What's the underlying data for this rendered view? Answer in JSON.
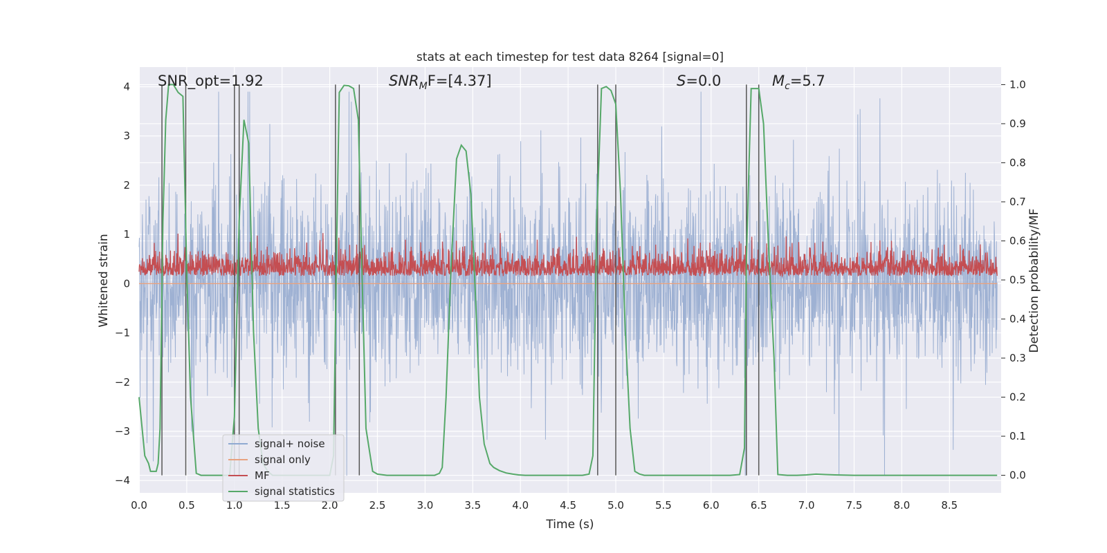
{
  "chart_data": {
    "type": "line",
    "title": "stats at each timestep for test data 8264 [signal=0]",
    "xlabel": "Time (s)",
    "ylabel": "Whitened strain",
    "ylabel_right": "Detection probability/MF",
    "xlim": [
      0,
      9.0
    ],
    "ylim": [
      -4.25,
      4.4
    ],
    "ylim_right": [
      -0.045,
      1.045
    ],
    "x_ticks": [
      "0.0",
      "0.5",
      "1.0",
      "1.5",
      "2.0",
      "2.5",
      "3.0",
      "3.5",
      "4.0",
      "4.5",
      "5.0",
      "5.5",
      "6.0",
      "6.5",
      "7.0",
      "7.5",
      "8.0",
      "8.5"
    ],
    "y_ticks": [
      "−4",
      "−3",
      "−2",
      "−1",
      "0",
      "1",
      "2",
      "3",
      "4"
    ],
    "y_ticks_right": [
      "0.0",
      "0.1",
      "0.2",
      "0.3",
      "0.4",
      "0.5",
      "0.6",
      "0.7",
      "0.8",
      "0.9",
      "1.0"
    ],
    "annotations": {
      "snr_opt": "SNR_opt=1.92",
      "snr_mf_main": "SNR",
      "snr_mf_sub": "M",
      "snr_mf_rest": "F=[4.37]",
      "s_main": "S",
      "s_rest": "=0.0",
      "mc_main": "M",
      "mc_sub": "c",
      "mc_rest": "=5.7"
    },
    "legend": {
      "position": "lower-left",
      "entries": [
        {
          "label": "signal+ noise",
          "color": "#8faad1"
        },
        {
          "label": "signal only",
          "color": "#e8a27f"
        },
        {
          "label": "MF",
          "color": "#c44e52"
        },
        {
          "label": "signal statistics",
          "color": "#55a868"
        }
      ]
    },
    "series": [
      {
        "name": "signal+ noise",
        "color": "#9aaed1",
        "description": "whitened noise, approx Gaussian, envelope about ±2.4, spikes to ±3.9",
        "range": [
          -3.9,
          3.9
        ]
      },
      {
        "name": "signal only",
        "color": "#e8a27f",
        "values_constant": 0.0
      },
      {
        "name": "MF",
        "color": "#c44e52",
        "description": "matched filter output on right axis",
        "range": [
          0.49,
          0.62
        ]
      },
      {
        "name": "signal statistics",
        "color": "#55a868",
        "x": [
          0.0,
          0.06,
          0.1,
          0.12,
          0.18,
          0.2,
          0.22,
          0.25,
          0.28,
          0.31,
          0.36,
          0.41,
          0.46,
          0.5,
          0.54,
          0.6,
          0.65,
          0.7,
          0.75,
          0.8,
          0.85,
          0.9,
          0.95,
          1.0,
          1.05,
          1.1,
          1.15,
          1.2,
          1.25,
          1.3,
          1.35,
          1.4,
          1.45,
          1.5,
          1.55,
          1.6,
          1.65,
          1.7,
          1.75,
          1.8,
          1.85,
          1.9,
          1.95,
          2.0,
          2.04,
          2.07,
          2.1,
          2.15,
          2.2,
          2.25,
          2.3,
          2.33,
          2.38,
          2.45,
          2.5,
          2.6,
          2.7,
          2.8,
          2.9,
          3.0,
          3.1,
          3.15,
          3.18,
          3.22,
          3.27,
          3.33,
          3.38,
          3.43,
          3.48,
          3.53,
          3.57,
          3.62,
          3.68,
          3.72,
          3.78,
          3.85,
          3.92,
          3.98,
          4.05,
          4.15,
          4.3,
          4.5,
          4.65,
          4.72,
          4.76,
          4.8,
          4.85,
          4.9,
          4.95,
          5.0,
          5.05,
          5.1,
          5.15,
          5.2,
          5.25,
          5.3,
          5.4,
          5.6,
          5.8,
          6.0,
          6.2,
          6.3,
          6.35,
          6.37,
          6.42,
          6.46,
          6.5,
          6.55,
          6.6,
          6.66,
          6.7,
          6.8,
          6.9,
          7.0,
          7.1,
          7.2,
          7.3,
          7.5,
          8.0,
          8.5,
          9.0
        ],
        "values": [
          0.2,
          0.05,
          0.03,
          0.01,
          0.01,
          0.03,
          0.12,
          0.65,
          0.91,
          1.0,
          1.0,
          0.98,
          0.97,
          0.52,
          0.2,
          0.005,
          0.0,
          0.0,
          0.0,
          0.0,
          0.0,
          0.0,
          0.0,
          0.15,
          0.65,
          0.91,
          0.85,
          0.37,
          0.12,
          0.03,
          0.01,
          0.0,
          0.0,
          0.0,
          0.0,
          0.0,
          0.0,
          0.0,
          0.0,
          0.0,
          0.0,
          0.0,
          0.0,
          0.0,
          0.05,
          0.56,
          0.98,
          0.998,
          0.997,
          0.99,
          0.91,
          0.6,
          0.12,
          0.01,
          0.003,
          0.0,
          0.0,
          0.0,
          0.0,
          0.0,
          0.0,
          0.005,
          0.02,
          0.2,
          0.52,
          0.81,
          0.845,
          0.83,
          0.72,
          0.45,
          0.2,
          0.08,
          0.03,
          0.02,
          0.012,
          0.006,
          0.003,
          0.001,
          0.0,
          0.0,
          0.0,
          0.0,
          0.0,
          0.003,
          0.05,
          0.65,
          0.99,
          0.995,
          0.985,
          0.95,
          0.72,
          0.37,
          0.12,
          0.01,
          0.003,
          0.0,
          0.0,
          0.0,
          0.0,
          0.0,
          0.0,
          0.002,
          0.07,
          0.55,
          0.99,
          0.99,
          0.99,
          0.9,
          0.6,
          0.3,
          0.002,
          0.0,
          0.0,
          0.001,
          0.003,
          0.002,
          0.001,
          0.0,
          0.0,
          0.0,
          0.0
        ]
      }
    ],
    "vertical_lines": [
      0.24,
      0.49,
      1.0,
      1.05,
      2.06,
      2.31,
      4.81,
      5.0,
      6.37,
      6.5
    ]
  }
}
